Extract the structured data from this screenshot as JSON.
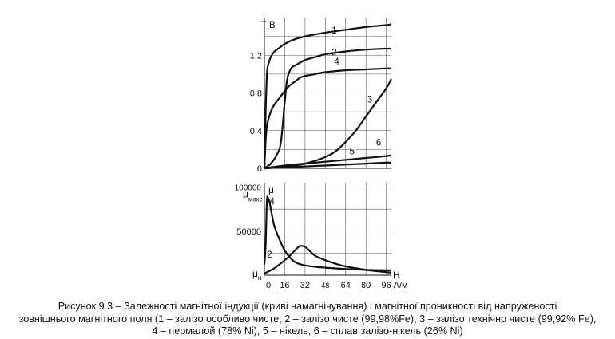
{
  "chart_data": [
    {
      "type": "line",
      "title": "",
      "ylabel": "T В",
      "xlabel": "",
      "yticks": [
        "0",
        "0,4",
        "0,8",
        "1,2"
      ],
      "ylim": [
        0,
        1.6
      ],
      "xlim": [
        0,
        100
      ],
      "grid": true,
      "series": [
        {
          "name": "1",
          "label_at": [
            55,
            1.43
          ],
          "x": [
            0,
            1,
            2,
            3,
            5,
            8,
            12,
            16,
            24,
            32,
            48,
            64,
            80,
            96,
            100
          ],
          "y": [
            0,
            0.6,
            1.0,
            1.1,
            1.18,
            1.24,
            1.28,
            1.32,
            1.37,
            1.4,
            1.44,
            1.47,
            1.5,
            1.52,
            1.53
          ]
        },
        {
          "name": "2",
          "label_at": [
            55,
            1.2
          ],
          "x": [
            0,
            5,
            10,
            13,
            16,
            18,
            21,
            24,
            28,
            32,
            40,
            48,
            64,
            80,
            96,
            100
          ],
          "y": [
            0,
            0.05,
            0.15,
            0.28,
            0.7,
            0.95,
            1.06,
            1.09,
            1.12,
            1.15,
            1.18,
            1.21,
            1.24,
            1.26,
            1.27,
            1.27
          ]
        },
        {
          "name": "3",
          "label_at": [
            83,
            0.7
          ],
          "x": [
            0,
            8,
            16,
            24,
            32,
            40,
            48,
            56,
            64,
            72,
            80,
            88,
            96,
            100
          ],
          "y": [
            0,
            0.01,
            0.02,
            0.03,
            0.05,
            0.08,
            0.12,
            0.18,
            0.28,
            0.4,
            0.55,
            0.7,
            0.85,
            0.95
          ]
        },
        {
          "name": "4",
          "label_at": [
            57,
            1.1
          ],
          "x": [
            0,
            1,
            2,
            4,
            6,
            8,
            12,
            16,
            20,
            24,
            28,
            32,
            40,
            48,
            64,
            80,
            96,
            100
          ],
          "y": [
            0,
            0.3,
            0.45,
            0.56,
            0.63,
            0.68,
            0.75,
            0.82,
            0.88,
            0.92,
            0.96,
            0.98,
            1.0,
            1.02,
            1.04,
            1.05,
            1.06,
            1.06
          ]
        },
        {
          "name": "5",
          "label_at": [
            69,
            0.15
          ],
          "x": [
            0,
            16,
            32,
            48,
            64,
            80,
            96,
            100
          ],
          "y": [
            0,
            0.03,
            0.05,
            0.07,
            0.09,
            0.11,
            0.13,
            0.14
          ]
        },
        {
          "name": "6",
          "label_at": [
            90,
            0.24
          ],
          "x": [
            0,
            16,
            32,
            48,
            64,
            80,
            96,
            100
          ],
          "y": [
            0,
            0.01,
            0.02,
            0.03,
            0.04,
            0.05,
            0.06,
            0.06
          ]
        }
      ]
    },
    {
      "type": "line",
      "title": "",
      "ylabel": "μ",
      "xlabel": "Н",
      "yticks": [
        "100000",
        "50000"
      ],
      "ymax_label": "μ",
      "ymax_sub": "макс",
      "ymin_label": "μ",
      "ymin_sub": "н",
      "xticks": [
        "0",
        "16",
        "32",
        "48",
        "64",
        "80",
        "96"
      ],
      "xunit": "А/м",
      "ylim": [
        0,
        105000
      ],
      "xlim": [
        0,
        100
      ],
      "grid": true,
      "series": [
        {
          "name": "4",
          "label_at": [
            6,
            80000
          ],
          "x": [
            0,
            1,
            2,
            3,
            4,
            6,
            8,
            12,
            16,
            20,
            24,
            28,
            32,
            40,
            48,
            64,
            80,
            96,
            100
          ],
          "y": [
            12000,
            35000,
            85000,
            87000,
            83000,
            68000,
            55000,
            40000,
            28000,
            20000,
            15000,
            12500,
            11000,
            9500,
            8500,
            7000,
            6000,
            5500,
            5500
          ]
        },
        {
          "name": "2",
          "label_at": [
            4,
            20000
          ],
          "x": [
            0,
            8,
            16,
            20,
            24,
            28,
            32,
            36,
            40,
            48,
            56,
            64,
            80,
            96,
            100
          ],
          "y": [
            2000,
            8000,
            17000,
            22000,
            28000,
            33000,
            32000,
            27000,
            22000,
            17000,
            13000,
            10000,
            6000,
            3500,
            3000
          ]
        }
      ]
    }
  ],
  "caption": [
    "Рисунок 9.3 – Залежності магнітної індукції (криві намагнічування) і магнітної проникності від напруженості",
    "зовнішнього магнітного поля (1 – залізо особливо чисте, 2 – залізо чисте (99,98%Fe), 3 – залізо технічно чисте (99,92% Fe),",
    "4 – пермалой (78% Ni), 5 – нікель, 6 – сплав залізо-нікель (26% Ni)"
  ]
}
